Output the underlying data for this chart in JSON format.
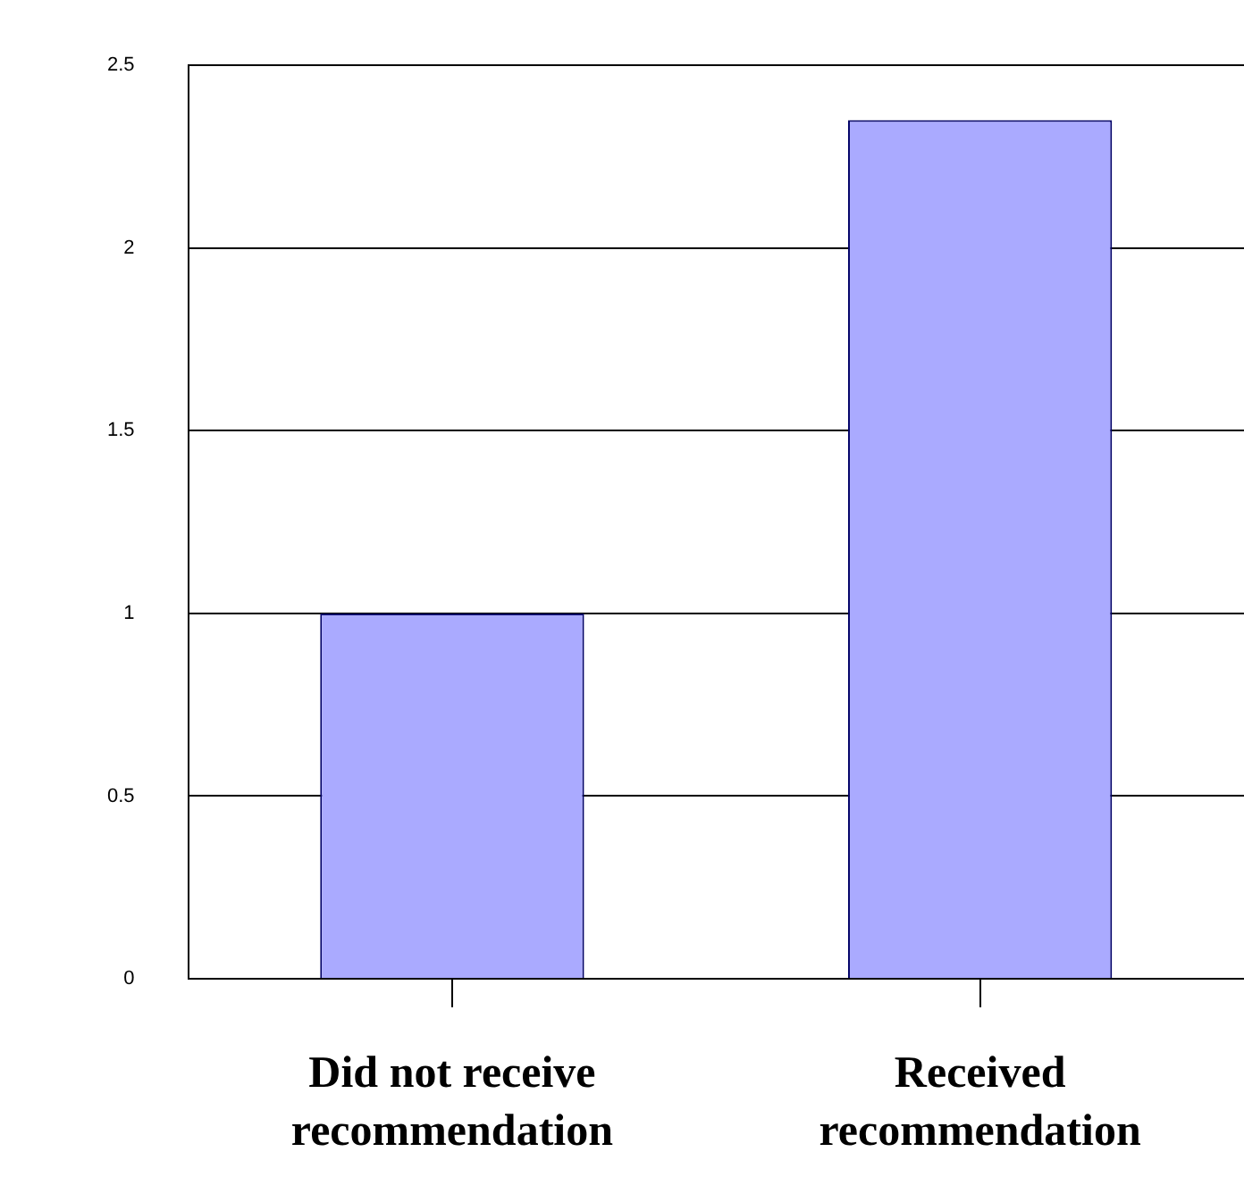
{
  "chart_data": {
    "type": "bar",
    "categories": [
      "Did not receive recommendation",
      "Received recommendation"
    ],
    "values": [
      1,
      2.35
    ],
    "color": "#aaaaff",
    "ylim": [
      0,
      2.5
    ],
    "yticks": [
      0,
      0.5,
      1,
      1.5,
      2,
      2.5
    ],
    "grid": "y",
    "legend": false
  }
}
